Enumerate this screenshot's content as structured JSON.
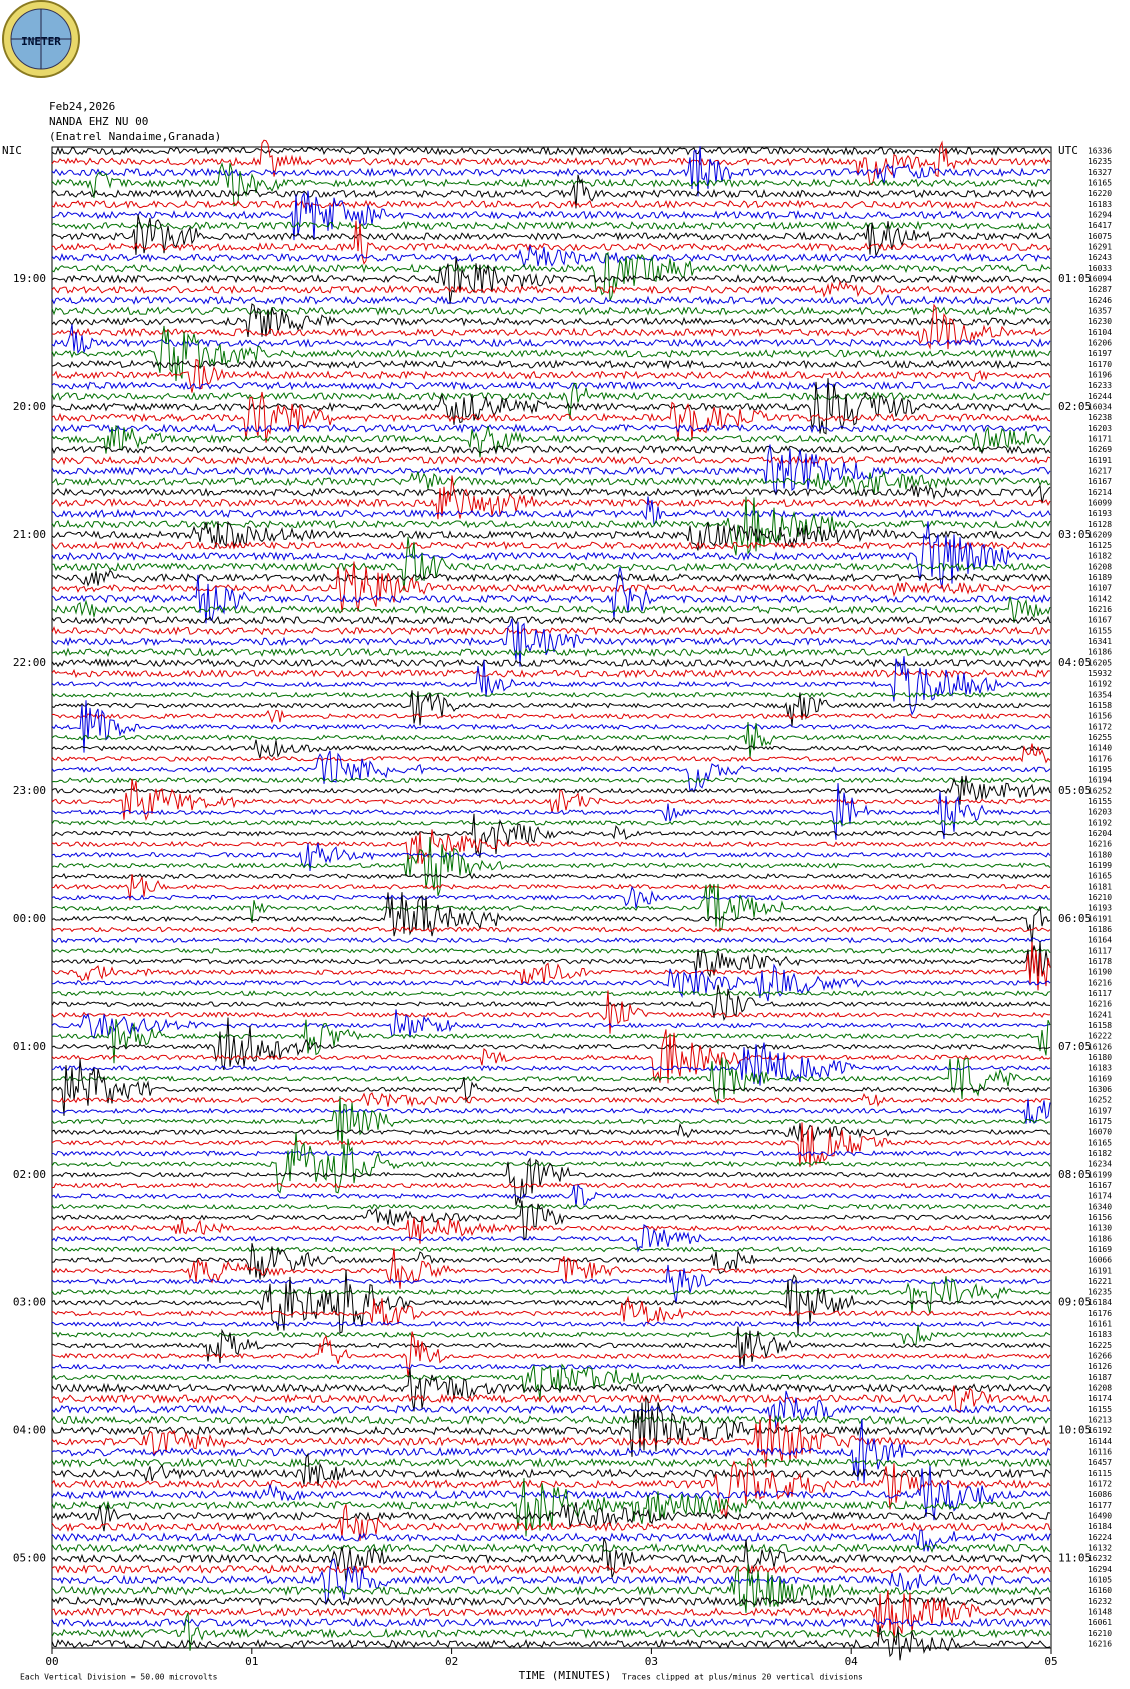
{
  "header": {
    "logo": "INETER",
    "date": "Feb24,2026",
    "station": "NANDA EHZ NU 00",
    "location": "(Enatrel Nandaime,Granada)"
  },
  "left_labels": [
    "NIC",
    "19:00",
    "20:00",
    "21:00",
    "22:00",
    "23:00",
    "00:00",
    "01:00",
    "02:00",
    "03:00",
    "04:00",
    "05:00"
  ],
  "right_labels": [
    "UTC",
    "01:05",
    "02:05",
    "03:05",
    "04:05",
    "05:05",
    "06:05",
    "07:05",
    "08:05",
    "09:05",
    "10:05",
    "11:05"
  ],
  "trace_labels": [
    "16336",
    "16235",
    "16327",
    "16165",
    "16220",
    "16183",
    "16294",
    "16417",
    "16075",
    "16291",
    "16243",
    "16033",
    "16094",
    "16287",
    "16246",
    "16357",
    "16230",
    "16104",
    "16206",
    "16197",
    "16170",
    "16196",
    "16233",
    "16244",
    "16034",
    "16238",
    "16203",
    "16171",
    "16269",
    "16191",
    "16217",
    "16167",
    "16214",
    "16099",
    "16193",
    "16128",
    "16209",
    "16125",
    "16182",
    "16208",
    "16189",
    "16107",
    "16142",
    "16216",
    "16167",
    "16155",
    "16341",
    "16186",
    "16205",
    "15932",
    "16192",
    "16354",
    "16158",
    "16156",
    "16172",
    "16255",
    "16140",
    "16176",
    "16195",
    "16194",
    "16252",
    "16155",
    "16203",
    "16192",
    "16204",
    "16216",
    "16180",
    "16199",
    "16165",
    "16181",
    "16210",
    "16193",
    "16191",
    "16186",
    "16164",
    "16117",
    "16178",
    "16190",
    "16216",
    "16117",
    "16216",
    "16241",
    "16158",
    "16222",
    "16126",
    "16180",
    "16183",
    "16169",
    "16306",
    "16252",
    "16197",
    "16175",
    "16070",
    "16165",
    "16182",
    "16234",
    "16199",
    "16167",
    "16174",
    "16340",
    "16156",
    "16130",
    "16186",
    "16169",
    "16066",
    "16191",
    "16221",
    "16235",
    "16184",
    "16176",
    "16161",
    "16183",
    "16225",
    "16266",
    "16126",
    "16187",
    "16208",
    "16174",
    "16155",
    "16213",
    "16192",
    "16144",
    "16116",
    "16457",
    "16115",
    "16172",
    "16086",
    "16177",
    "16490",
    "16184",
    "16224",
    "16132",
    "16232",
    "16294",
    "16105",
    "16160",
    "16232",
    "16148",
    "16061",
    "16210",
    "16216"
  ],
  "x_labels": [
    "00",
    "01",
    "02",
    "03",
    "04",
    "05"
  ],
  "x_title": "TIME (MINUTES)",
  "footer": {
    "left": "Each Vertical Division = 50.00 microvolts",
    "right": "Traces clipped at plus/minus 20 vertical divisions"
  }
}
